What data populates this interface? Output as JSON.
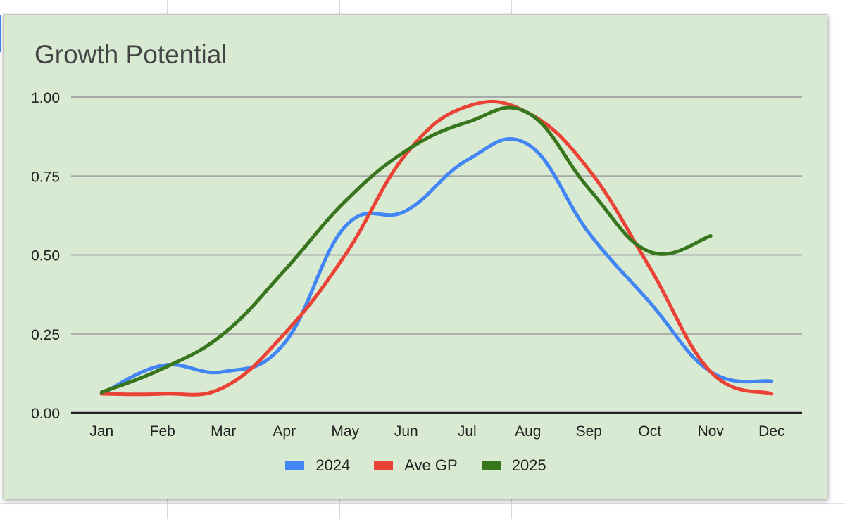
{
  "colors": {
    "background": "#d9ead3",
    "gridline": "#a8a8a8",
    "axis": "#222222",
    "title": "#444444"
  },
  "chart_data": {
    "type": "line",
    "title": "Growth Potential",
    "xlabel": "",
    "ylabel": "",
    "x": [
      "Jan",
      "Feb",
      "Mar",
      "Apr",
      "May",
      "Jun",
      "Jul",
      "Aug",
      "Sep",
      "Oct",
      "Nov",
      "Dec"
    ],
    "ylim": [
      0,
      1
    ],
    "yticks": [
      "0.00",
      "0.25",
      "0.50",
      "0.75",
      "1.00"
    ],
    "grid": true,
    "smooth": true,
    "legend_position": "bottom",
    "series": [
      {
        "name": "2024",
        "color": "#4285f4",
        "values": [
          0.06,
          0.15,
          0.13,
          0.22,
          0.59,
          0.64,
          0.8,
          0.85,
          0.57,
          0.35,
          0.13,
          0.1
        ]
      },
      {
        "name": "Ave GP",
        "color": "#ea4335",
        "values": [
          0.06,
          0.06,
          0.08,
          0.25,
          0.5,
          0.82,
          0.97,
          0.95,
          0.77,
          0.46,
          0.13,
          0.06
        ]
      },
      {
        "name": "2025",
        "color": "#38761d",
        "values": [
          0.065,
          0.14,
          0.25,
          0.45,
          0.67,
          0.83,
          0.92,
          0.95,
          0.71,
          0.51,
          0.56,
          null
        ]
      }
    ]
  }
}
